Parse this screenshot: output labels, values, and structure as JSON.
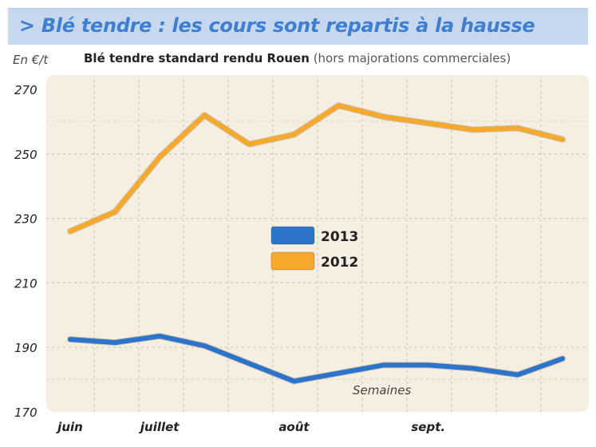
{
  "header": {
    "title": "> Blé tendre : les cours sont repartis à la hausse"
  },
  "chart_info": {
    "unit_label": "En €/t",
    "subtitle_main": "Blé tendre standard rendu Rouen",
    "subtitle_note": "(hors majorations commerciales)",
    "annotation": "Semaines"
  },
  "colors": {
    "series_2013": "#2b74c9",
    "series_2012": "#f7a92b",
    "plot_bg": "#f6eee0",
    "title_bar": "#c7d7ee",
    "title_text": "#3f7fd2"
  },
  "chart_data": {
    "type": "line",
    "title": "Blé tendre standard rendu Rouen",
    "ylabel": "En €/t",
    "xlabel": "Semaines",
    "ylim": [
      170,
      270
    ],
    "y_ticks": [
      170,
      190,
      210,
      230,
      250,
      270
    ],
    "x_tick_labels": [
      "juin",
      "juillet",
      "août",
      "sept."
    ],
    "x_tick_positions": [
      0,
      2,
      5,
      8
    ],
    "grid": true,
    "legend_position": "center",
    "series": [
      {
        "name": "2013",
        "values": [
          192.5,
          191.5,
          193.5,
          190.5,
          185,
          179.5,
          182,
          184.5,
          184.5,
          183.5,
          181.5,
          186.5
        ]
      },
      {
        "name": "2012",
        "values": [
          226,
          232,
          249,
          262,
          253,
          256,
          265,
          261.5,
          259.5,
          257.5,
          258,
          254.5
        ]
      }
    ]
  }
}
